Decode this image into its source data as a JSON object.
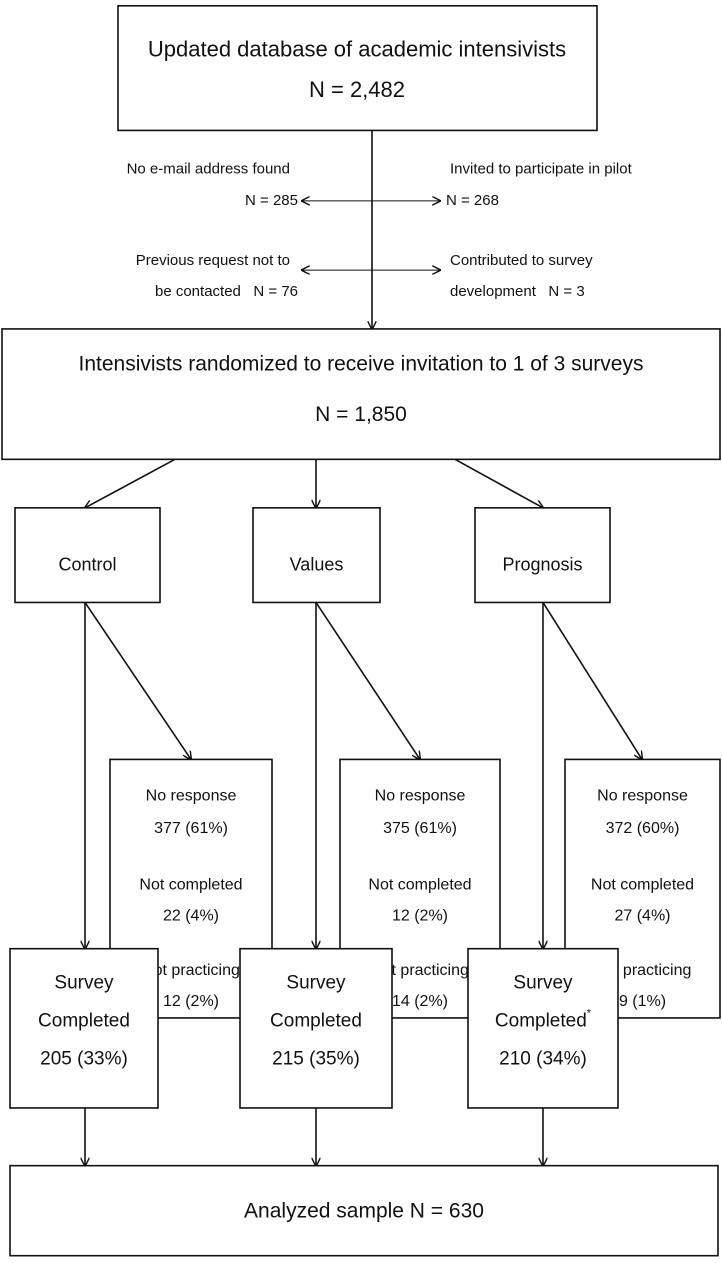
{
  "source": {
    "lines": [
      "Updated database of academic intensivists",
      "N = 2,482"
    ]
  },
  "exclusions_left": [
    {
      "lines": [
        "No e-mail address found",
        "N = 285"
      ]
    },
    {
      "lines": [
        "Previous request not to",
        "be contacted   N = 76"
      ]
    }
  ],
  "exclusions_right": [
    {
      "lines": [
        "Invited to participate in pilot",
        "N = 268"
      ]
    },
    {
      "lines": [
        "Contributed to survey",
        "development   N = 3"
      ]
    }
  ],
  "randomized": {
    "lines": [
      "Intensivists randomized to receive invitation to 1 of 3 surveys",
      "N = 1,850"
    ]
  },
  "arms": [
    {
      "name": "Control",
      "excluded": [
        "No response",
        "377 (61%)",
        "Not completed",
        "22 (4%)",
        "Not practicing",
        "12 (2%)"
      ],
      "completed": [
        "Survey",
        "Completed",
        "205 (33%)"
      ]
    },
    {
      "name": "Values",
      "excluded": [
        "No response",
        "375 (61%)",
        "Not completed",
        "12 (2%)",
        "Not practicing",
        "14 (2%)"
      ],
      "completed": [
        "Survey",
        "Completed",
        "215 (35%)"
      ]
    },
    {
      "name": "Prognosis",
      "excluded": [
        "No response",
        "372 (60%)",
        "Not completed",
        "27 (4%)",
        "Not practicing",
        "9 (1%)"
      ],
      "completed": [
        "Survey",
        "Completed",
        "210 (34%)"
      ],
      "completed_note": "*"
    }
  ],
  "analyzed": "Analyzed sample N = 630"
}
